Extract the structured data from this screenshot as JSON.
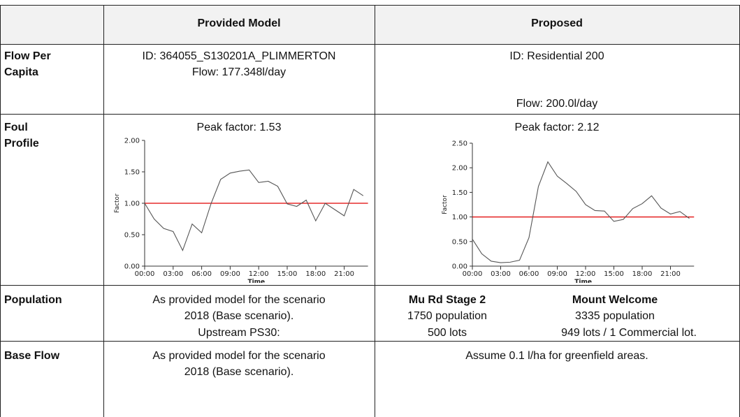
{
  "table": {
    "columns": [
      "Provided Model",
      "Proposed"
    ],
    "rows": [
      {
        "label": "Flow Per Capita",
        "provided": [
          "ID: 364055_S130201A_PLIMMERTON",
          "Flow: 177.348l/day"
        ],
        "proposed": [
          "ID: Residential 200",
          "Flow: 200.0l/day"
        ]
      },
      {
        "label": "Foul Profile"
      },
      {
        "label": "Population",
        "provided": [
          "As provided model for the scenario",
          "2018 (Base scenario).",
          "Upstream PS30:"
        ],
        "proposed": [
          {
            "name": "Mu Rd Stage 2",
            "lines": [
              "1750 population",
              "500 lots"
            ]
          },
          {
            "name": "Mount Welcome",
            "lines": [
              "3335 population",
              "949 lots / 1 Commercial lot."
            ]
          }
        ]
      },
      {
        "label": "Base Flow",
        "provided": [
          "As provided model for the scenario",
          "2018 (Base scenario)."
        ],
        "proposed": [
          "Assume 0.1 l/ha for greenfield areas."
        ]
      }
    ]
  },
  "chart_data": [
    {
      "type": "line",
      "title": "Peak factor: 1.53",
      "x_label": "Time",
      "y_label": "Factor",
      "x": [
        0,
        1,
        2,
        3,
        4,
        5,
        6,
        7,
        8,
        9,
        10,
        11,
        12,
        13,
        14,
        15,
        16,
        17,
        18,
        19,
        20,
        21,
        22,
        23
      ],
      "series": [
        {
          "name": "Factor",
          "color": "#555555",
          "values": [
            1.0,
            0.75,
            0.6,
            0.55,
            0.25,
            0.67,
            0.53,
            1.0,
            1.38,
            1.48,
            1.51,
            1.53,
            1.33,
            1.35,
            1.27,
            0.99,
            0.95,
            1.05,
            0.72,
            1.0,
            0.9,
            0.8,
            1.22,
            1.12
          ]
        }
      ],
      "reference_line": {
        "value": 1,
        "color": "#e00000"
      },
      "xlim": [
        0,
        23.5
      ],
      "xticks": [
        {
          "value": 0,
          "label": "00:00"
        },
        {
          "value": 3,
          "label": "03:00"
        },
        {
          "value": 6,
          "label": "06:00"
        },
        {
          "value": 9,
          "label": "09:00"
        },
        {
          "value": 12,
          "label": "12:00"
        },
        {
          "value": 15,
          "label": "15:00"
        },
        {
          "value": 18,
          "label": "18:00"
        },
        {
          "value": 21,
          "label": "21:00"
        }
      ],
      "ylim": [
        0,
        2
      ],
      "yticks": [
        {
          "value": 0,
          "label": "0.00"
        },
        {
          "value": 0.5,
          "label": "0.50"
        },
        {
          "value": 1,
          "label": "1.00"
        },
        {
          "value": 1.5,
          "label": "1.50"
        },
        {
          "value": 2,
          "label": "2.00"
        }
      ]
    },
    {
      "type": "line",
      "title": "Peak factor: 2.12",
      "x_label": "Time",
      "y_label": "Factor",
      "x": [
        0,
        1,
        2,
        3,
        4,
        5,
        6,
        7,
        8,
        9,
        10,
        11,
        12,
        13,
        14,
        15,
        16,
        17,
        18,
        19,
        20,
        21,
        22,
        23
      ],
      "series": [
        {
          "name": "Factor",
          "color": "#555555",
          "values": [
            0.55,
            0.25,
            0.1,
            0.07,
            0.08,
            0.12,
            0.58,
            1.62,
            2.12,
            1.83,
            1.68,
            1.52,
            1.25,
            1.13,
            1.12,
            0.91,
            0.95,
            1.17,
            1.27,
            1.43,
            1.18,
            1.06,
            1.11,
            0.97
          ]
        }
      ],
      "reference_line": {
        "value": 1,
        "color": "#e00000"
      },
      "xlim": [
        0,
        23.5
      ],
      "xticks": [
        {
          "value": 0,
          "label": "00:00"
        },
        {
          "value": 3,
          "label": "03:00"
        },
        {
          "value": 6,
          "label": "06:00"
        },
        {
          "value": 9,
          "label": "09:00"
        },
        {
          "value": 12,
          "label": "12:00"
        },
        {
          "value": 15,
          "label": "15:00"
        },
        {
          "value": 18,
          "label": "18:00"
        },
        {
          "value": 21,
          "label": "21:00"
        }
      ],
      "ylim": [
        0,
        2.5
      ],
      "yticks": [
        {
          "value": 0,
          "label": "0.00"
        },
        {
          "value": 0.5,
          "label": "0.50"
        },
        {
          "value": 1,
          "label": "1.00"
        },
        {
          "value": 1.5,
          "label": "1.50"
        },
        {
          "value": 2,
          "label": "2.00"
        },
        {
          "value": 2.5,
          "label": "2.50"
        }
      ]
    }
  ]
}
